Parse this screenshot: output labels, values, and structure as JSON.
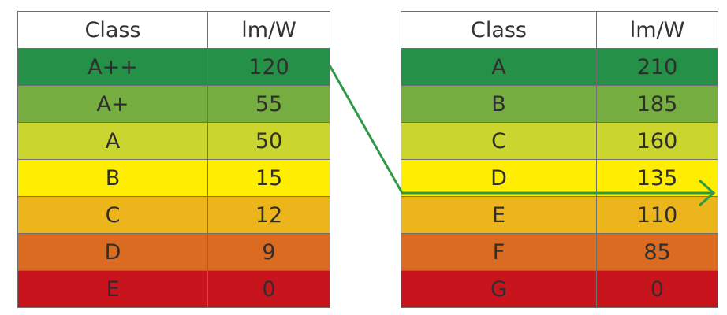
{
  "left_table": {
    "header": {
      "class": "Class",
      "efficacy": "lm/W"
    },
    "rows": [
      {
        "class": "A++",
        "value": "120",
        "color": "#259047"
      },
      {
        "class": "A+",
        "value": "55",
        "color": "#75ad41"
      },
      {
        "class": "A",
        "value": "50",
        "color": "#cad52f"
      },
      {
        "class": "B",
        "value": "15",
        "color": "#ffee00"
      },
      {
        "class": "C",
        "value": "12",
        "color": "#ecb51b"
      },
      {
        "class": "D",
        "value": "9",
        "color": "#db6b21"
      },
      {
        "class": "E",
        "value": "0",
        "color": "#c8141c"
      }
    ]
  },
  "right_table": {
    "header": {
      "class": "Class",
      "efficacy": "lm/W"
    },
    "rows": [
      {
        "class": "A",
        "value": "210",
        "color": "#259047"
      },
      {
        "class": "B",
        "value": "185",
        "color": "#75ad41"
      },
      {
        "class": "C",
        "value": "160",
        "color": "#cad52f"
      },
      {
        "class": "D",
        "value": "135",
        "color": "#ffee00"
      },
      {
        "class": "E",
        "value": "110",
        "color": "#ecb51b"
      },
      {
        "class": "F",
        "value": "85",
        "color": "#db6b21"
      },
      {
        "class": "G",
        "value": "0",
        "color": "#c8141c"
      }
    ]
  },
  "arrow": {
    "color": "#2e9a46",
    "from": "left A++ (120)",
    "to": "right D/E boundary (135–110)"
  }
}
